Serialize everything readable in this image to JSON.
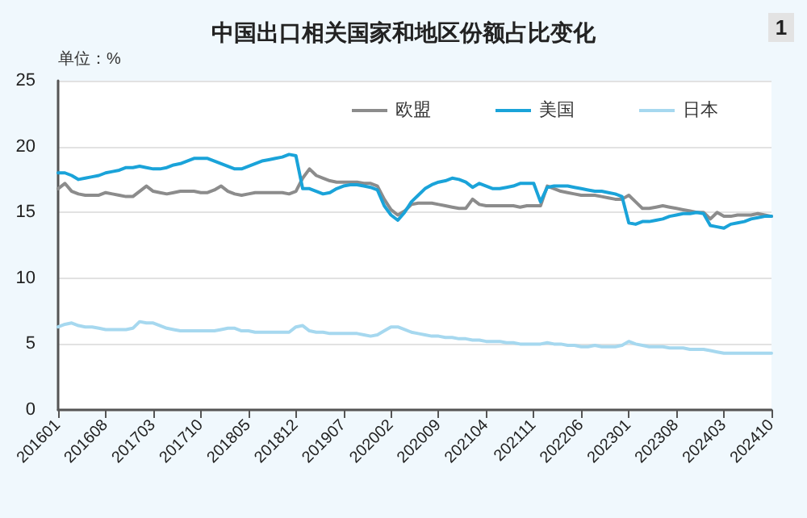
{
  "chart_data": {
    "type": "line",
    "title": "中国出口相关国家和地区份额占比变化",
    "ylabel": "单位：%",
    "annotations": [
      "1"
    ],
    "categories": [
      "201601",
      null,
      null,
      null,
      null,
      null,
      null,
      "201608",
      null,
      null,
      null,
      null,
      null,
      null,
      "201703",
      null,
      null,
      null,
      null,
      null,
      null,
      "201710",
      null,
      null,
      null,
      null,
      null,
      null,
      "201805",
      null,
      null,
      null,
      null,
      null,
      null,
      "201812",
      null,
      null,
      null,
      null,
      null,
      null,
      "201907",
      null,
      null,
      null,
      null,
      null,
      null,
      "202002",
      null,
      null,
      null,
      null,
      null,
      null,
      "202009",
      null,
      null,
      null,
      null,
      null,
      null,
      "202104",
      null,
      null,
      null,
      null,
      null,
      null,
      "202111",
      null,
      null,
      null,
      null,
      null,
      null,
      "202206",
      null,
      null,
      null,
      null,
      null,
      null,
      "202301",
      null,
      null,
      null,
      null,
      null,
      null,
      "202308",
      null,
      null,
      null,
      null,
      null,
      null,
      "202403",
      null,
      null,
      null,
      null,
      null,
      null,
      "202410"
    ],
    "series": [
      {
        "name": "欧盟",
        "color": "#8c8c8c",
        "values": [
          16.8,
          17.2,
          16.6,
          16.4,
          16.3,
          16.3,
          16.3,
          16.5,
          16.4,
          16.3,
          16.2,
          16.2,
          16.6,
          17.0,
          16.6,
          16.5,
          16.4,
          16.5,
          16.6,
          16.6,
          16.6,
          16.5,
          16.5,
          16.7,
          17.0,
          16.6,
          16.4,
          16.3,
          16.4,
          16.5,
          16.5,
          16.5,
          16.5,
          16.5,
          16.4,
          16.6,
          17.6,
          18.3,
          17.8,
          17.6,
          17.4,
          17.3,
          17.3,
          17.3,
          17.3,
          17.2,
          17.2,
          17.0,
          16.0,
          15.2,
          14.8,
          15.1,
          15.6,
          15.7,
          15.7,
          15.7,
          15.6,
          15.5,
          15.4,
          15.3,
          15.3,
          16.0,
          15.6,
          15.5,
          15.5,
          15.5,
          15.5,
          15.5,
          15.4,
          15.5,
          15.5,
          15.5,
          17.0,
          16.8,
          16.6,
          16.5,
          16.4,
          16.3,
          16.3,
          16.3,
          16.2,
          16.1,
          16.0,
          16.0,
          16.3,
          15.8,
          15.3,
          15.3,
          15.4,
          15.5,
          15.4,
          15.3,
          15.2,
          15.1,
          15.0,
          15.0,
          14.5,
          15.0,
          14.7,
          14.7,
          14.8,
          14.8,
          14.8,
          14.9,
          14.8,
          14.7
        ]
      },
      {
        "name": "美国",
        "color": "#1aa3d9",
        "values": [
          18.0,
          18.0,
          17.8,
          17.5,
          17.6,
          17.7,
          17.8,
          18.0,
          18.1,
          18.2,
          18.4,
          18.4,
          18.5,
          18.4,
          18.3,
          18.3,
          18.4,
          18.6,
          18.7,
          18.9,
          19.1,
          19.1,
          19.1,
          18.9,
          18.7,
          18.5,
          18.3,
          18.3,
          18.5,
          18.7,
          18.9,
          19.0,
          19.1,
          19.2,
          19.4,
          19.3,
          16.8,
          16.8,
          16.6,
          16.4,
          16.5,
          16.8,
          17.0,
          17.1,
          17.1,
          17.0,
          16.9,
          16.7,
          15.5,
          14.8,
          14.4,
          15.0,
          15.8,
          16.3,
          16.8,
          17.1,
          17.3,
          17.4,
          17.6,
          17.5,
          17.3,
          16.9,
          17.2,
          17.0,
          16.8,
          16.8,
          16.9,
          17.0,
          17.2,
          17.2,
          17.2,
          15.8,
          16.9,
          17.0,
          17.0,
          17.0,
          16.9,
          16.8,
          16.7,
          16.6,
          16.6,
          16.5,
          16.4,
          16.2,
          14.2,
          14.1,
          14.3,
          14.3,
          14.4,
          14.5,
          14.7,
          14.8,
          14.9,
          14.9,
          15.0,
          14.9,
          14.0,
          13.9,
          13.8,
          14.1,
          14.2,
          14.3,
          14.5,
          14.6,
          14.7,
          14.7
        ]
      },
      {
        "name": "日本",
        "color": "#a6d8ef",
        "values": [
          6.3,
          6.5,
          6.6,
          6.4,
          6.3,
          6.3,
          6.2,
          6.1,
          6.1,
          6.1,
          6.1,
          6.2,
          6.7,
          6.6,
          6.6,
          6.4,
          6.2,
          6.1,
          6.0,
          6.0,
          6.0,
          6.0,
          6.0,
          6.0,
          6.1,
          6.2,
          6.2,
          6.0,
          6.0,
          5.9,
          5.9,
          5.9,
          5.9,
          5.9,
          5.9,
          6.3,
          6.4,
          6.0,
          5.9,
          5.9,
          5.8,
          5.8,
          5.8,
          5.8,
          5.8,
          5.7,
          5.6,
          5.7,
          6.0,
          6.3,
          6.3,
          6.1,
          5.9,
          5.8,
          5.7,
          5.6,
          5.6,
          5.5,
          5.5,
          5.4,
          5.4,
          5.3,
          5.3,
          5.2,
          5.2,
          5.2,
          5.1,
          5.1,
          5.0,
          5.0,
          5.0,
          5.0,
          5.1,
          5.0,
          5.0,
          4.9,
          4.9,
          4.8,
          4.8,
          4.9,
          4.8,
          4.8,
          4.8,
          4.9,
          5.2,
          5.0,
          4.9,
          4.8,
          4.8,
          4.8,
          4.7,
          4.7,
          4.7,
          4.6,
          4.6,
          4.6,
          4.5,
          4.4,
          4.3,
          4.3,
          4.3,
          4.3,
          4.3,
          4.3,
          4.3,
          4.3
        ]
      }
    ],
    "ylim": [
      0,
      25
    ],
    "yticks": [
      0,
      5,
      10,
      15,
      20,
      25
    ],
    "grid": "y",
    "legend": "top",
    "marker": "none",
    "line_style": "solid"
  }
}
